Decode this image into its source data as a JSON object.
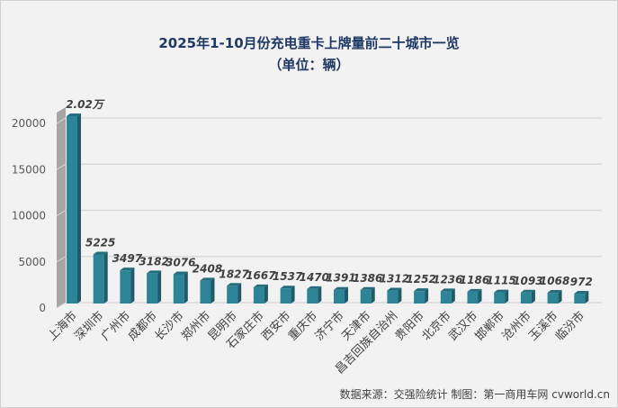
{
  "chart_data": {
    "type": "bar",
    "title": "2025年1-10月份充电重卡上牌量前二十城市一览",
    "subtitle": "（单位：辆）",
    "categories": [
      "上海市",
      "深圳市",
      "广州市",
      "成都市",
      "长沙市",
      "郑州市",
      "昆明市",
      "石家庄市",
      "西安市",
      "重庆市",
      "济宁市",
      "天津市",
      "昌吉回族自治州",
      "贵阳市",
      "北京市",
      "武汉市",
      "邯郸市",
      "沧州市",
      "玉溪市",
      "临汾市"
    ],
    "values": [
      20200,
      5225,
      3497,
      3182,
      3076,
      2408,
      1827,
      1667,
      1537,
      1470,
      1391,
      1386,
      1312,
      1252,
      1236,
      1186,
      1115,
      1093,
      1068,
      972
    ],
    "data_labels": [
      "2.02万",
      "5225",
      "3497",
      "3182",
      "3076",
      "2408",
      "1827",
      "1667",
      "1537",
      "1470",
      "1391",
      "1386",
      "1312",
      "1252",
      "1236",
      "1186",
      "1115",
      "1093",
      "1068",
      "972"
    ],
    "ylim": [
      0,
      20000
    ],
    "yticks": [
      0,
      5000,
      10000,
      15000,
      20000
    ],
    "grid": true,
    "bar_color": "#2e8497",
    "xlabel": "",
    "ylabel": ""
  },
  "source": "数据来源：交强险统计   制图：第一商用车网 cvworld.cn"
}
